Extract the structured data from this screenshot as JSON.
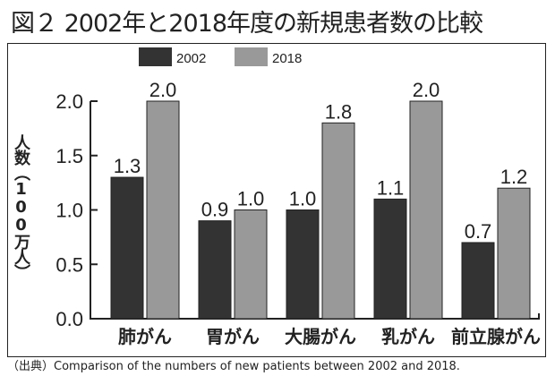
{
  "title": "図２ 2002年と2018年度の新規患者数の比較",
  "source": "（出典）Comparison of the numbers of new patients between 2002 and 2018.",
  "chart_data": {
    "type": "bar",
    "title": "図２ 2002年と2018年度の新規患者数の比較",
    "ylabel": "人数（100万人）",
    "xlabel": "",
    "categories": [
      "肺がん",
      "胃がん",
      "大腸がん",
      "乳がん",
      "前立腺がん"
    ],
    "series": [
      {
        "name": "2002",
        "values": [
          1.3,
          0.9,
          1.0,
          1.1,
          0.7
        ],
        "labels": [
          "1.3",
          "0.9",
          "1.0",
          "1.1",
          "0.7"
        ],
        "color": "#333333"
      },
      {
        "name": "2018",
        "values": [
          2.0,
          1.0,
          1.8,
          2.0,
          1.2
        ],
        "labels": [
          "2.0",
          "1.0",
          "1.8",
          "2.0",
          "1.2"
        ],
        "color": "#999999"
      }
    ],
    "ylim": [
      0,
      2.0
    ],
    "yticks": [
      "0.0",
      "0.5",
      "1.0",
      "1.5",
      "2.0"
    ],
    "legend_position": "top",
    "grid": false
  }
}
